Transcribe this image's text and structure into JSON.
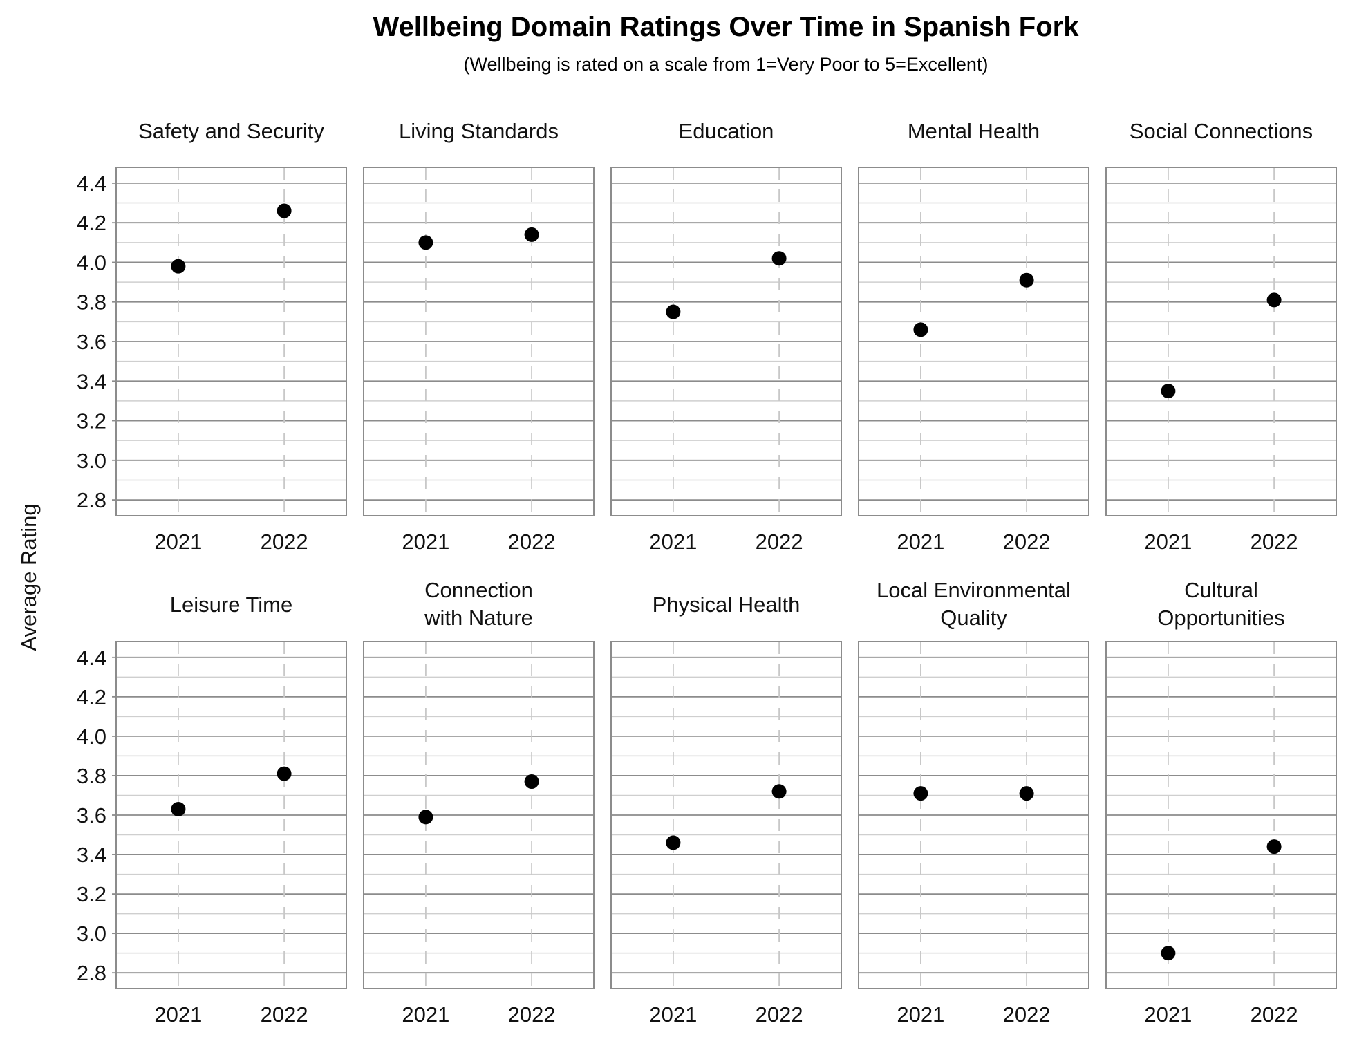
{
  "chart_data": {
    "type": "scatter",
    "title": "Wellbeing Domain Ratings Over Time in Spanish Fork",
    "subtitle": "(Wellbeing is rated on a scale from 1=Very Poor to 5=Excellent)",
    "ylabel": "Average Rating",
    "xlabel": "",
    "categories": [
      "2021",
      "2022"
    ],
    "ylim": [
      2.72,
      4.48
    ],
    "yticks": [
      2.8,
      3.0,
      3.2,
      3.4,
      3.6,
      3.8,
      4.0,
      4.2,
      4.4
    ],
    "ytick_labels": [
      "2.8",
      "3.0",
      "3.2",
      "3.4",
      "3.6",
      "3.8",
      "4.0",
      "4.2",
      "4.4"
    ],
    "grid": true,
    "point_color": "#000000",
    "panels": [
      {
        "title_lines": [
          "Safety and Security"
        ],
        "values": [
          3.98,
          4.26
        ]
      },
      {
        "title_lines": [
          "Living Standards"
        ],
        "values": [
          4.1,
          4.14
        ]
      },
      {
        "title_lines": [
          "Education"
        ],
        "values": [
          3.75,
          4.02
        ]
      },
      {
        "title_lines": [
          "Mental Health"
        ],
        "values": [
          3.66,
          3.91
        ]
      },
      {
        "title_lines": [
          "Social Connections"
        ],
        "values": [
          3.35,
          3.81
        ]
      },
      {
        "title_lines": [
          "Leisure Time"
        ],
        "values": [
          3.63,
          3.81
        ]
      },
      {
        "title_lines": [
          "Connection",
          "with Nature"
        ],
        "values": [
          3.59,
          3.77
        ]
      },
      {
        "title_lines": [
          "Physical Health"
        ],
        "values": [
          3.46,
          3.72
        ]
      },
      {
        "title_lines": [
          "Local Environmental",
          "Quality"
        ],
        "values": [
          3.71,
          3.71
        ]
      },
      {
        "title_lines": [
          "Cultural",
          "Opportunities"
        ],
        "values": [
          2.9,
          3.44
        ]
      }
    ]
  }
}
